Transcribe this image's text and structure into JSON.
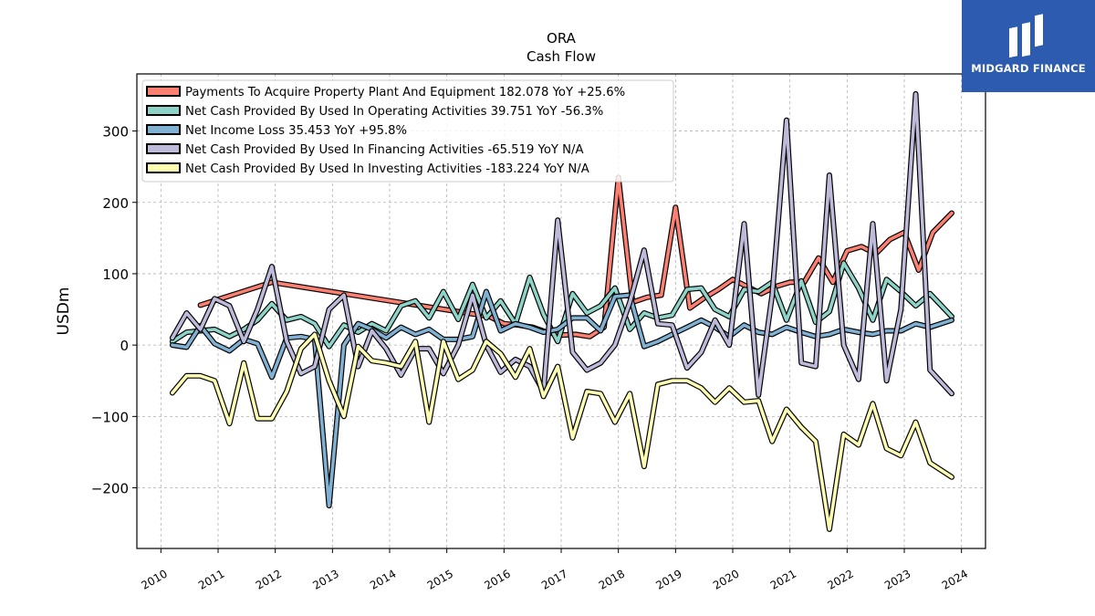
{
  "brand": {
    "name": "MIDGARD FINANCE",
    "background": "#2d5bb0"
  },
  "chart_data": {
    "type": "line",
    "title": "ORA",
    "subtitle": "Cash Flow",
    "xlabel": "",
    "ylabel": "USDm",
    "xlim": [
      2009.58,
      2024.42
    ],
    "ylim": [
      -285,
      380
    ],
    "yticks": [
      -200,
      -100,
      0,
      100,
      200,
      300
    ],
    "ytick_labels": [
      "−200",
      "−100",
      "0",
      "100",
      "200",
      "300"
    ],
    "xticks": [
      2010,
      2011,
      2012,
      2013,
      2014,
      2015,
      2016,
      2017,
      2018,
      2019,
      2020,
      2021,
      2022,
      2023,
      2024
    ],
    "grid": true,
    "legend_position": "top-left",
    "series": [
      {
        "name": "Payments To Acquire Property Plant And Equipment",
        "legend": "Payments To Acquire Property Plant And Equipment  182.078 YoY +25.6%",
        "color": "#fb8072",
        "x": [
          2010.69,
          2011.94,
          2015.75,
          2016.0,
          2016.25,
          2016.5,
          2016.75,
          2017.0,
          2017.25,
          2017.5,
          2017.75,
          2018.0,
          2018.25,
          2018.5,
          2018.75,
          2019.0,
          2019.25,
          2019.5,
          2019.75,
          2020.0,
          2020.25,
          2020.5,
          2020.75,
          2021.0,
          2021.25,
          2021.5,
          2021.75,
          2022.0,
          2022.25,
          2022.5,
          2022.75,
          2023.0,
          2023.25,
          2023.5,
          2023.83
        ],
        "y": [
          56,
          88,
          40,
          30,
          28,
          25,
          18,
          14,
          15,
          12,
          25,
          235,
          60,
          67,
          70,
          193,
          52,
          66,
          78,
          92,
          82,
          72,
          82,
          88,
          88,
          122,
          88,
          132,
          138,
          128,
          148,
          158,
          105,
          158,
          185
        ]
      },
      {
        "name": "Net Cash Provided By Used In Operating Activities",
        "legend": "Net Cash Provided By Used In Operating Activities  39.751 YoY -56.3%",
        "color": "#8dd3c7",
        "x": [
          2010.2,
          2010.45,
          2010.69,
          2010.94,
          2011.2,
          2011.45,
          2011.69,
          2011.94,
          2012.2,
          2012.45,
          2012.69,
          2012.94,
          2013.2,
          2013.45,
          2013.69,
          2013.94,
          2014.2,
          2014.45,
          2014.69,
          2014.94,
          2015.2,
          2015.45,
          2015.69,
          2015.94,
          2016.2,
          2016.45,
          2016.69,
          2016.94,
          2017.2,
          2017.45,
          2017.69,
          2017.94,
          2018.2,
          2018.45,
          2018.69,
          2018.94,
          2019.2,
          2019.45,
          2019.69,
          2019.94,
          2020.2,
          2020.45,
          2020.69,
          2020.94,
          2021.2,
          2021.45,
          2021.69,
          2021.94,
          2022.2,
          2022.45,
          2022.69,
          2022.94,
          2023.2,
          2023.45,
          2023.83
        ],
        "y": [
          5,
          18,
          20,
          22,
          12,
          22,
          35,
          58,
          35,
          40,
          30,
          -2,
          28,
          18,
          30,
          20,
          55,
          62,
          38,
          75,
          36,
          85,
          38,
          62,
          30,
          95,
          43,
          5,
          72,
          45,
          55,
          80,
          22,
          45,
          38,
          42,
          78,
          80,
          50,
          40,
          78,
          75,
          88,
          35,
          90,
          32,
          47,
          115,
          80,
          35,
          92,
          75,
          55,
          72,
          40
        ]
      },
      {
        "name": "Net Income Loss",
        "legend": "Net Income Loss  35.453 YoY +95.8%",
        "color": "#80b1d3",
        "x": [
          2010.2,
          2010.45,
          2010.69,
          2010.94,
          2011.2,
          2011.45,
          2011.69,
          2011.94,
          2012.2,
          2012.45,
          2012.69,
          2012.94,
          2013.2,
          2013.45,
          2013.69,
          2013.94,
          2014.2,
          2014.45,
          2014.69,
          2014.94,
          2015.2,
          2015.45,
          2015.69,
          2015.94,
          2016.2,
          2016.45,
          2016.69,
          2016.94,
          2017.2,
          2017.45,
          2017.69,
          2017.94,
          2018.2,
          2018.45,
          2018.69,
          2018.94,
          2019.2,
          2019.45,
          2019.69,
          2019.94,
          2020.2,
          2020.45,
          2020.69,
          2020.94,
          2021.2,
          2021.45,
          2021.69,
          2021.94,
          2022.2,
          2022.45,
          2022.69,
          2022.94,
          2023.2,
          2023.45,
          2023.83
        ],
        "y": [
          0,
          -3,
          27,
          2,
          -8,
          8,
          2,
          -45,
          10,
          12,
          8,
          -225,
          0,
          30,
          22,
          10,
          25,
          15,
          22,
          8,
          8,
          12,
          75,
          20,
          30,
          25,
          18,
          22,
          38,
          38,
          20,
          68,
          70,
          -2,
          5,
          15,
          25,
          35,
          25,
          12,
          28,
          18,
          15,
          25,
          18,
          12,
          15,
          22,
          18,
          15,
          20,
          20,
          30,
          25,
          35
        ]
      },
      {
        "name": "Net Cash Provided By Used In Financing Activities",
        "legend": "Net Cash Provided By Used In Financing Activities  -65.519 YoY N/A",
        "color": "#bebada",
        "x": [
          2010.2,
          2010.45,
          2010.69,
          2010.94,
          2011.2,
          2011.45,
          2011.69,
          2011.94,
          2012.2,
          2012.45,
          2012.69,
          2012.94,
          2013.2,
          2013.45,
          2013.69,
          2013.94,
          2014.2,
          2014.45,
          2014.69,
          2014.94,
          2015.2,
          2015.45,
          2015.69,
          2015.94,
          2016.2,
          2016.45,
          2016.69,
          2016.94,
          2017.2,
          2017.45,
          2017.69,
          2017.94,
          2018.2,
          2018.45,
          2018.69,
          2018.94,
          2019.2,
          2019.45,
          2019.69,
          2019.94,
          2020.2,
          2020.45,
          2020.69,
          2020.94,
          2021.2,
          2021.45,
          2021.69,
          2021.94,
          2022.2,
          2022.45,
          2022.69,
          2022.94,
          2023.2,
          2023.45,
          2023.83
        ],
        "y": [
          10,
          45,
          22,
          65,
          55,
          5,
          50,
          110,
          5,
          -40,
          -30,
          50,
          70,
          -30,
          20,
          -5,
          -42,
          -5,
          -5,
          -40,
          0,
          70,
          0,
          -38,
          -20,
          -30,
          -65,
          175,
          -10,
          -35,
          -25,
          0,
          60,
          133,
          30,
          28,
          -32,
          -10,
          35,
          0,
          170,
          -70,
          70,
          315,
          -25,
          -30,
          238,
          0,
          -48,
          170,
          -50,
          50,
          352,
          -35,
          -68
        ]
      },
      {
        "name": "Net Cash Provided By Used In Investing Activities",
        "legend": "Net Cash Provided By Used In Investing Activities  -183.224 YoY N/A",
        "color": "#ffffb3",
        "x": [
          2010.2,
          2010.45,
          2010.69,
          2010.94,
          2011.2,
          2011.45,
          2011.69,
          2011.94,
          2012.2,
          2012.45,
          2012.69,
          2012.94,
          2013.2,
          2013.45,
          2013.69,
          2013.94,
          2014.2,
          2014.45,
          2014.69,
          2014.94,
          2015.2,
          2015.45,
          2015.69,
          2015.94,
          2016.2,
          2016.45,
          2016.69,
          2016.94,
          2017.2,
          2017.45,
          2017.69,
          2017.94,
          2018.2,
          2018.45,
          2018.69,
          2018.94,
          2019.2,
          2019.45,
          2019.69,
          2019.94,
          2020.2,
          2020.45,
          2020.69,
          2020.94,
          2021.2,
          2021.45,
          2021.69,
          2021.94,
          2022.2,
          2022.45,
          2022.69,
          2022.94,
          2023.2,
          2023.45,
          2023.83
        ],
        "y": [
          -67,
          -43,
          -43,
          -50,
          -110,
          -25,
          -103,
          -103,
          -65,
          -5,
          15,
          -50,
          -100,
          -2,
          -22,
          -25,
          -30,
          5,
          -108,
          5,
          -48,
          -35,
          5,
          -12,
          -45,
          -5,
          -72,
          -30,
          -130,
          -65,
          -68,
          -108,
          -68,
          -170,
          -55,
          -50,
          -50,
          -60,
          -80,
          -60,
          -80,
          -78,
          -135,
          -90,
          -115,
          -135,
          -258,
          -125,
          -140,
          -82,
          -145,
          -155,
          -108,
          -165,
          -185
        ]
      }
    ]
  }
}
